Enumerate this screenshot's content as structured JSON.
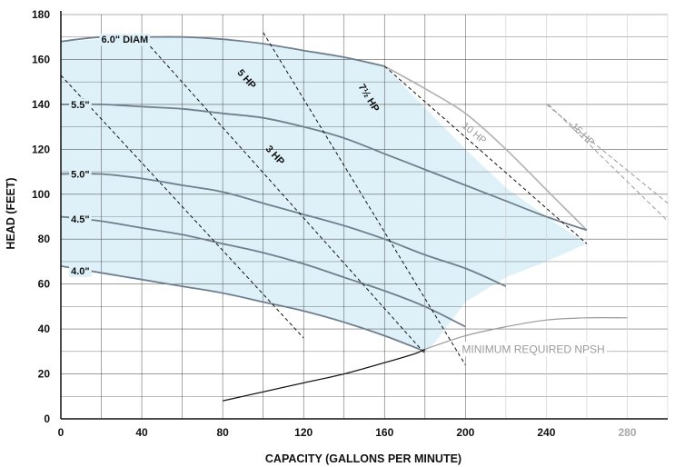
{
  "chart_data": {
    "type": "line",
    "xlabel": "CAPACITY (GALLONS PER MINUTE)",
    "ylabel": "HEAD (FEET)",
    "xlim": [
      0,
      300
    ],
    "ylim": [
      0,
      180
    ],
    "x_ticks": [
      0,
      40,
      80,
      120,
      160,
      200,
      240,
      280
    ],
    "y_ticks": [
      0,
      20,
      40,
      60,
      80,
      100,
      120,
      140,
      160,
      180
    ],
    "grid": true,
    "operating_region_color": "#dff1f8",
    "series": [
      {
        "name": "6.0\" DIAM",
        "style": "impeller",
        "label_at": [
          20,
          169
        ],
        "x": [
          0,
          20,
          40,
          60,
          80,
          100,
          120,
          140,
          160
        ],
        "y": [
          168,
          170,
          170,
          170,
          169,
          167,
          164,
          161,
          157
        ]
      },
      {
        "name": "",
        "style": "impeller-extension",
        "x": [
          160,
          180,
          200,
          220,
          240,
          260
        ],
        "y": [
          157,
          147,
          136,
          120,
          102,
          84
        ]
      },
      {
        "name": "5.5\"",
        "style": "impeller",
        "label_at": [
          5,
          140
        ],
        "x": [
          0,
          20,
          40,
          60,
          80,
          100,
          120,
          140,
          160,
          180,
          200,
          220,
          240,
          260
        ],
        "y": [
          140,
          140,
          139,
          138,
          136,
          134,
          130,
          125,
          118,
          111,
          104,
          97,
          90,
          84
        ]
      },
      {
        "name": "5.0\"",
        "style": "impeller",
        "label_at": [
          5,
          109
        ],
        "x": [
          0,
          20,
          40,
          60,
          80,
          100,
          120,
          140,
          160,
          180,
          200,
          220
        ],
        "y": [
          109,
          109,
          107,
          104,
          101,
          96,
          91,
          86,
          80,
          73,
          67,
          59
        ]
      },
      {
        "name": "4.5\"",
        "style": "impeller",
        "label_at": [
          5,
          89
        ],
        "x": [
          0,
          20,
          40,
          60,
          80,
          100,
          120,
          140,
          160,
          180,
          200
        ],
        "y": [
          90,
          88,
          85,
          82,
          78,
          74,
          69,
          63,
          57,
          50,
          41
        ]
      },
      {
        "name": "4.0\"",
        "style": "impeller",
        "label_at": [
          5,
          66
        ],
        "x": [
          0,
          20,
          40,
          60,
          80,
          100,
          120,
          140,
          160,
          180
        ],
        "y": [
          68,
          65,
          62,
          59,
          56,
          52,
          48,
          43,
          37,
          30
        ]
      },
      {
        "name": "MINIMUM REQUIRED NPSH",
        "style": "npsh",
        "label_at": [
          268,
          31
        ],
        "x": [
          80,
          100,
          120,
          140,
          160,
          175,
          180,
          200,
          220,
          240,
          260,
          280
        ],
        "y": [
          8,
          12,
          16,
          20,
          25,
          29,
          31,
          37,
          41,
          44,
          45,
          45
        ]
      },
      {
        "name": "3 HP",
        "style": "hp",
        "label_at": [
          101,
          120
        ],
        "x": [
          0,
          120
        ],
        "y": [
          153,
          36
        ]
      },
      {
        "name": "5 HP",
        "style": "hp",
        "label_at": [
          87,
          154
        ],
        "x": [
          40,
          180
        ],
        "y": [
          170,
          29
        ]
      },
      {
        "name": "7½ HP",
        "style": "hp",
        "label_at": [
          147,
          148
        ],
        "x": [
          100,
          200
        ],
        "y": [
          172,
          24
        ]
      },
      {
        "name": "",
        "style": "hp",
        "x": [
          160,
          260
        ],
        "y": [
          157,
          78
        ]
      },
      {
        "name": "10 HP",
        "style": "hp-light",
        "label_at": [
          198,
          130
        ],
        "x": [
          240,
          300
        ],
        "y": [
          140,
          96
        ]
      },
      {
        "name": "15 HP",
        "style": "hp-light",
        "label_at": [
          252,
          130
        ],
        "x": [
          241,
          300
        ],
        "y": [
          140,
          88
        ]
      }
    ],
    "operating_region": {
      "x": [
        0,
        40,
        80,
        120,
        160,
        200,
        220,
        240,
        260,
        240,
        220,
        200,
        185,
        180,
        160,
        140,
        120,
        100,
        80,
        60,
        40,
        20,
        0
      ],
      "y": [
        168,
        170,
        169,
        164,
        157,
        120,
        103,
        90,
        78,
        70,
        63,
        52,
        34,
        30,
        37,
        43,
        48,
        52,
        56,
        59,
        62,
        65,
        68
      ]
    }
  },
  "colors": {
    "fill": "#dff1f8",
    "impeller": "#6f7f8f",
    "hp": "#111111",
    "hp_light": "#9a9a9a",
    "npsh": "#9a9a9a",
    "npsh_inner": "#111111",
    "grid": "#3a3a3a",
    "grid_light": "#cccccc"
  }
}
